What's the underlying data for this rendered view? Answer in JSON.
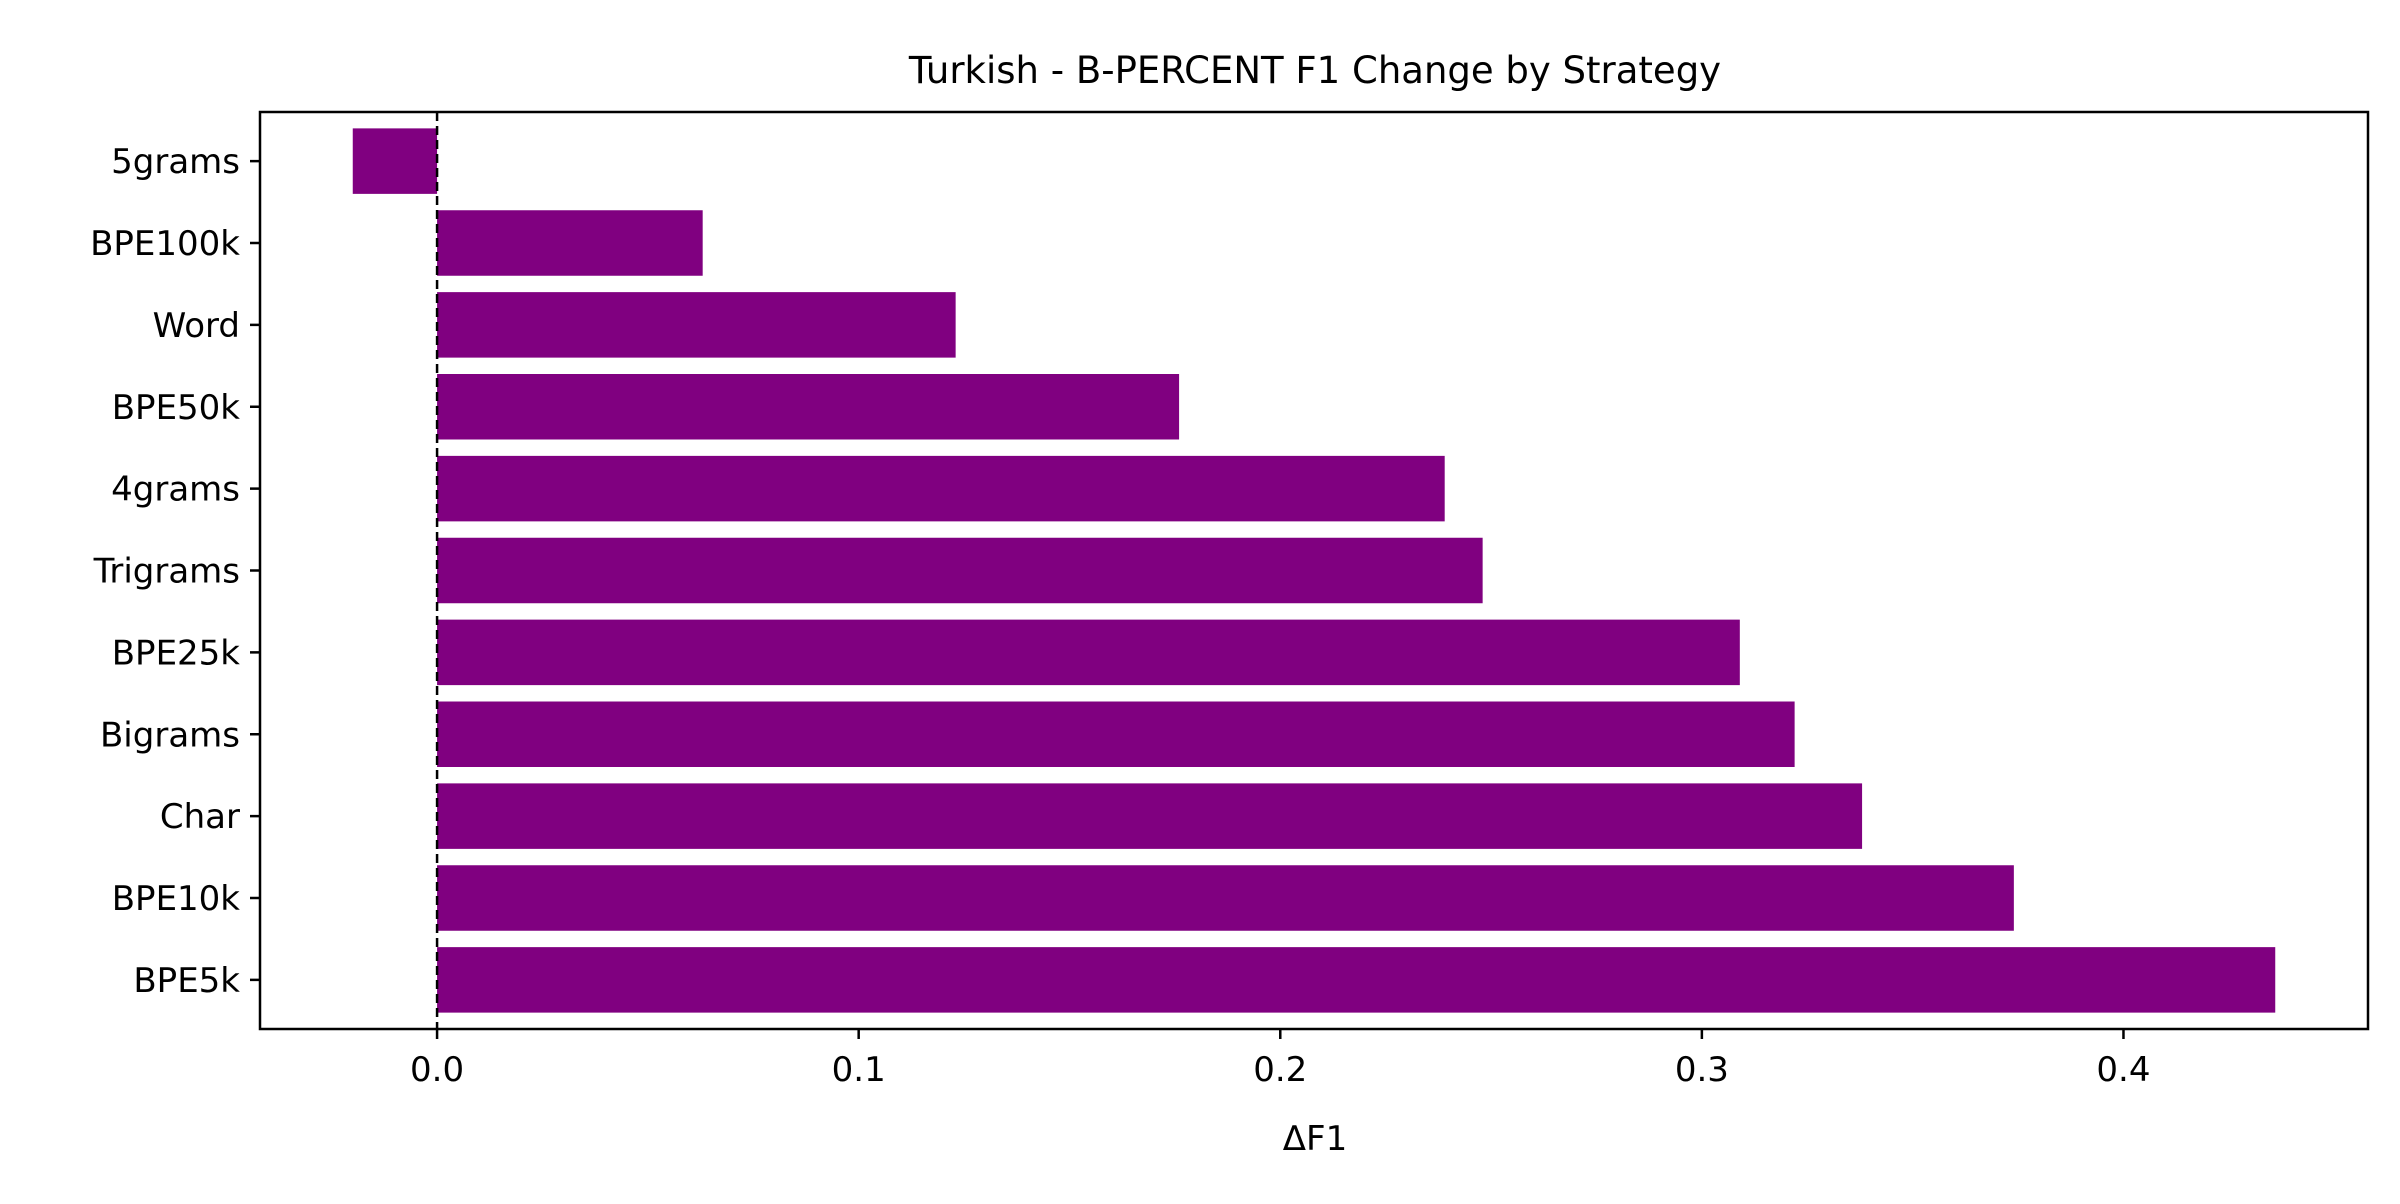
{
  "chart_data": {
    "type": "bar",
    "orientation": "horizontal",
    "title": "Turkish - B-PERCENT F1 Change by Strategy",
    "xlabel": "ΔF1",
    "ylabel": "",
    "categories": [
      "5grams",
      "BPE100k",
      "Word",
      "BPE50k",
      "4grams",
      "Trigrams",
      "BPE25k",
      "Bigrams",
      "Char",
      "BPE10k",
      "BPE5k"
    ],
    "values": [
      -0.02,
      0.063,
      0.123,
      0.176,
      0.239,
      0.248,
      0.309,
      0.322,
      0.338,
      0.374,
      0.436
    ],
    "xlim": [
      -0.042,
      0.458
    ],
    "xticks": [
      0.0,
      0.1,
      0.2,
      0.3,
      0.4
    ],
    "xtick_labels": [
      "0.0",
      "0.1",
      "0.2",
      "0.3",
      "0.4"
    ],
    "reference_line": {
      "x": 0.0,
      "style": "dashed"
    },
    "bar_color": "#800080",
    "grid": false,
    "legend": "none"
  }
}
